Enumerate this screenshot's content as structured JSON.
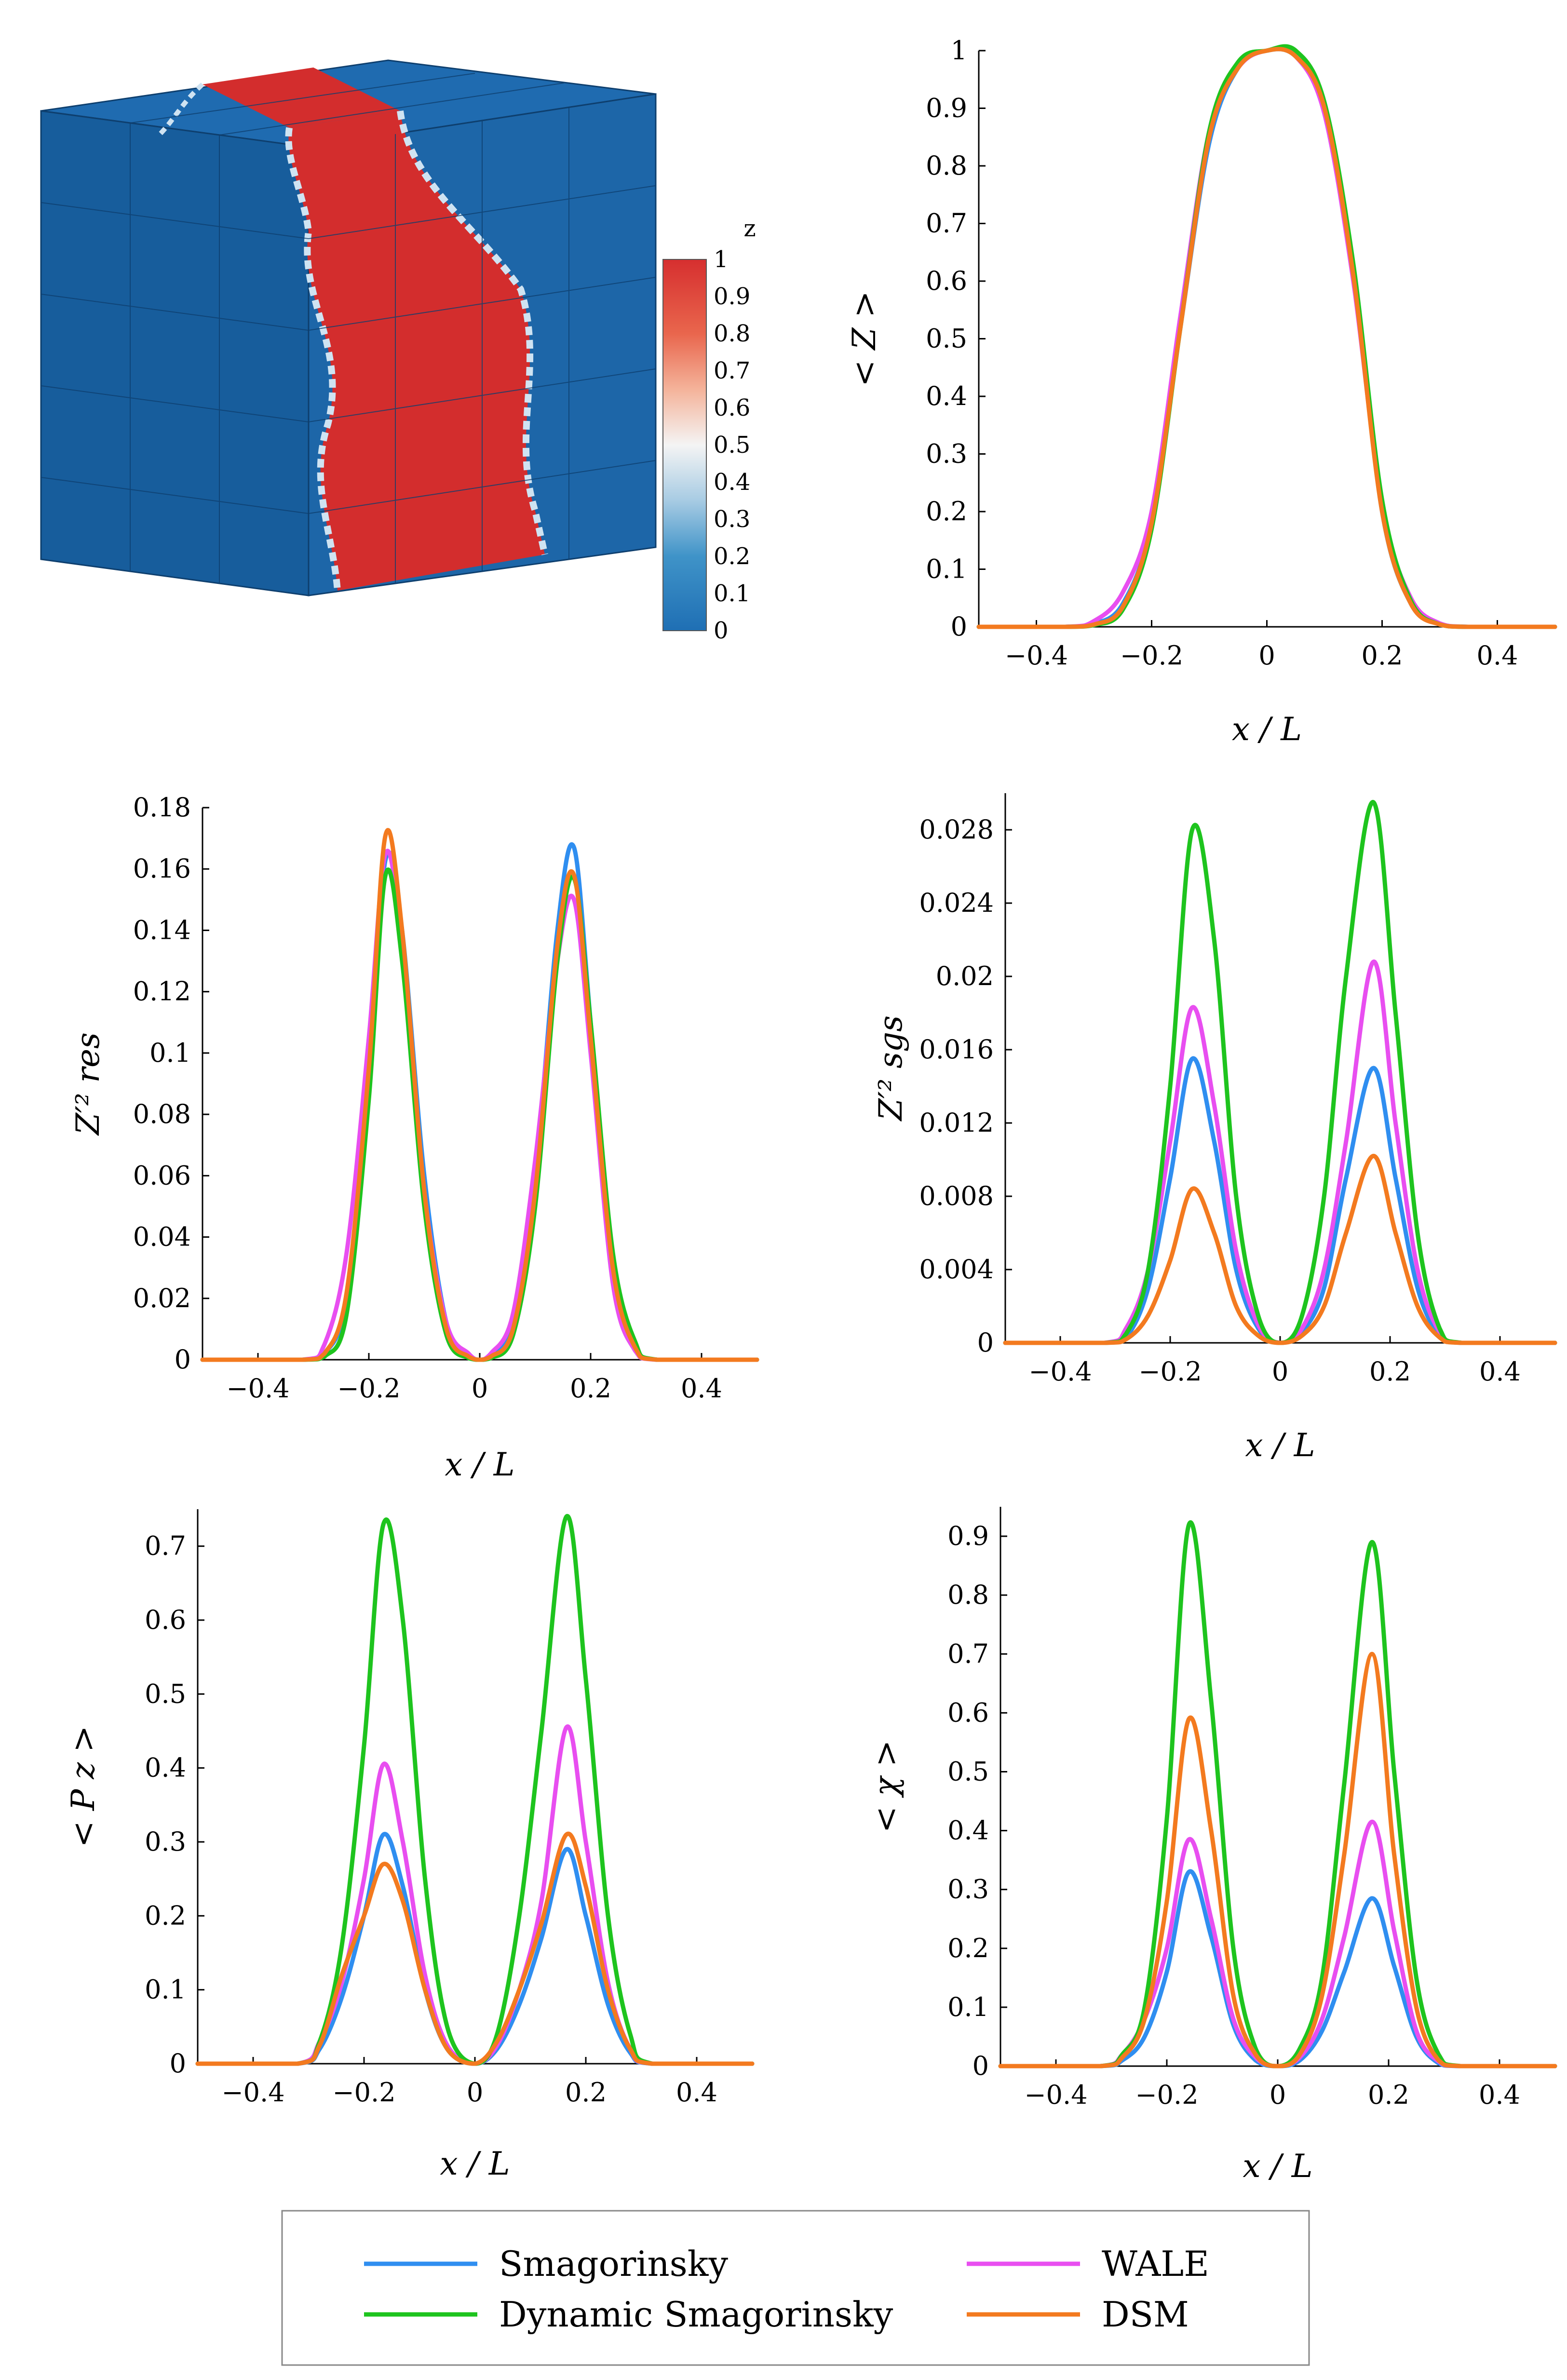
{
  "figure": {
    "cube_panel": {
      "colorbar": {
        "title": "z",
        "ticks": [
          "1",
          "0.9",
          "0.8",
          "0.7",
          "0.6",
          "0.5",
          "0.4",
          "0.3",
          "0.2",
          "0.1",
          "0"
        ],
        "color_low": "#1f6fb4",
        "color_mid": "#f4f4f4",
        "color_high": "#d62f2f"
      }
    },
    "legend": {
      "entries": [
        {
          "label": "Smagorinsky",
          "color": "#2f8ef0"
        },
        {
          "label": "WALE",
          "color": "#e84ef0"
        },
        {
          "label": "Dynamic Smagorinsky",
          "color": "#1ec41e"
        },
        {
          "label": "DSM",
          "color": "#f37a1f"
        }
      ]
    }
  },
  "chart_data": [
    {
      "id": "mean_z",
      "type": "line",
      "title": "",
      "xlabel": "x / L",
      "ylabel": "< Z >",
      "xlim": [
        -0.5,
        0.5
      ],
      "ylim": [
        0,
        1
      ],
      "xticks": [
        "−0.4",
        "−0.2",
        "0",
        "0.2",
        "0.4"
      ],
      "yticks": [
        "0",
        "0.1",
        "0.2",
        "0.3",
        "0.4",
        "0.5",
        "0.6",
        "0.7",
        "0.8",
        "0.9",
        "1"
      ],
      "x": [
        -0.5,
        -0.35,
        -0.3,
        -0.25,
        -0.2,
        -0.15,
        -0.1,
        -0.05,
        0,
        0.05,
        0.1,
        0.15,
        0.2,
        0.25,
        0.3,
        0.35,
        0.5
      ],
      "series": [
        {
          "name": "Smagorinsky",
          "values": [
            0,
            0,
            0.005,
            0.04,
            0.18,
            0.52,
            0.84,
            0.97,
            1.0,
            0.99,
            0.9,
            0.62,
            0.2,
            0.04,
            0.005,
            0,
            0
          ]
        },
        {
          "name": "WALE",
          "values": [
            0,
            0,
            0.01,
            0.06,
            0.2,
            0.54,
            0.86,
            0.97,
            1.0,
            0.99,
            0.89,
            0.6,
            0.21,
            0.05,
            0.006,
            0,
            0
          ]
        },
        {
          "name": "Dynamic Smagorinsky",
          "values": [
            0,
            0,
            0.003,
            0.03,
            0.17,
            0.52,
            0.86,
            0.98,
            1.0,
            1.0,
            0.91,
            0.63,
            0.22,
            0.045,
            0.004,
            0,
            0
          ]
        },
        {
          "name": "DSM",
          "values": [
            0,
            0,
            0.004,
            0.035,
            0.18,
            0.52,
            0.85,
            0.97,
            1.0,
            0.99,
            0.9,
            0.61,
            0.2,
            0.04,
            0.004,
            0,
            0
          ]
        }
      ]
    },
    {
      "id": "z_var_res",
      "type": "line",
      "title": "",
      "xlabel": "x / L",
      "ylabel": "Z′² res",
      "xlim": [
        -0.5,
        0.5
      ],
      "ylim": [
        0,
        0.18
      ],
      "xticks": [
        "−0.4",
        "−0.2",
        "0",
        "0.2",
        "0.4"
      ],
      "yticks": [
        "0",
        "0.02",
        "0.04",
        "0.06",
        "0.08",
        "0.1",
        "0.12",
        "0.14",
        "0.16",
        "0.18"
      ],
      "x": [
        -0.5,
        -0.32,
        -0.28,
        -0.24,
        -0.2,
        -0.17,
        -0.14,
        -0.1,
        -0.06,
        -0.02,
        0,
        0.02,
        0.06,
        0.1,
        0.14,
        0.17,
        0.2,
        0.24,
        0.28,
        0.32,
        0.5
      ],
      "series": [
        {
          "name": "Smagorinsky",
          "values": [
            0,
            0,
            0.002,
            0.02,
            0.09,
            0.163,
            0.14,
            0.06,
            0.012,
            0.001,
            0,
            0.001,
            0.012,
            0.06,
            0.14,
            0.167,
            0.11,
            0.03,
            0.004,
            0,
            0
          ]
        },
        {
          "name": "WALE",
          "values": [
            0,
            0,
            0.005,
            0.035,
            0.105,
            0.165,
            0.135,
            0.055,
            0.012,
            0.002,
            0,
            0.002,
            0.015,
            0.065,
            0.13,
            0.15,
            0.1,
            0.025,
            0.003,
            0,
            0
          ]
        },
        {
          "name": "Dynamic Smagorinsky",
          "values": [
            0,
            0,
            0.001,
            0.015,
            0.085,
            0.158,
            0.13,
            0.05,
            0.008,
            0.0005,
            0,
            0.0005,
            0.008,
            0.05,
            0.13,
            0.157,
            0.11,
            0.035,
            0.006,
            0,
            0
          ]
        },
        {
          "name": "DSM",
          "values": [
            0,
            0,
            0.002,
            0.022,
            0.095,
            0.171,
            0.14,
            0.055,
            0.01,
            0.001,
            0,
            0.001,
            0.01,
            0.055,
            0.135,
            0.158,
            0.105,
            0.03,
            0.004,
            0,
            0
          ]
        }
      ]
    },
    {
      "id": "z_var_sgs",
      "type": "line",
      "title": "",
      "xlabel": "x / L",
      "ylabel": "Z′² sgs",
      "xlim": [
        -0.5,
        0.5
      ],
      "ylim": [
        0,
        0.03
      ],
      "xticks": [
        "−0.4",
        "−0.2",
        "0",
        "0.2",
        "0.4"
      ],
      "yticks": [
        "0",
        "0.004",
        "0.008",
        "0.012",
        "0.016",
        "0.02",
        "0.024",
        "0.028"
      ],
      "x": [
        -0.5,
        -0.32,
        -0.28,
        -0.24,
        -0.2,
        -0.16,
        -0.12,
        -0.08,
        -0.04,
        0,
        0.04,
        0.08,
        0.12,
        0.17,
        0.21,
        0.25,
        0.29,
        0.33,
        0.5
      ],
      "series": [
        {
          "name": "Smagorinsky",
          "values": [
            0,
            0,
            0.0003,
            0.003,
            0.009,
            0.0155,
            0.011,
            0.004,
            0.0008,
            0,
            0.0006,
            0.003,
            0.009,
            0.015,
            0.009,
            0.003,
            0.0004,
            0,
            0
          ]
        },
        {
          "name": "WALE",
          "values": [
            0,
            0,
            0.0008,
            0.004,
            0.011,
            0.0183,
            0.013,
            0.005,
            0.001,
            0,
            0.0008,
            0.004,
            0.011,
            0.0208,
            0.012,
            0.004,
            0.0006,
            0,
            0
          ]
        },
        {
          "name": "Dynamic Smagorinsky",
          "values": [
            0,
            0,
            0.0005,
            0.004,
            0.014,
            0.028,
            0.022,
            0.008,
            0.0015,
            0,
            0.0015,
            0.008,
            0.02,
            0.0295,
            0.018,
            0.006,
            0.0008,
            0,
            0
          ]
        },
        {
          "name": "DSM",
          "values": [
            0,
            0,
            0.0002,
            0.0015,
            0.0045,
            0.0084,
            0.006,
            0.002,
            0.0004,
            0,
            0.0004,
            0.002,
            0.006,
            0.0102,
            0.006,
            0.002,
            0.0003,
            0,
            0
          ]
        }
      ]
    },
    {
      "id": "mean_pz",
      "type": "line",
      "title": "",
      "xlabel": "x / L",
      "ylabel": "< P z >",
      "xlim": [
        -0.5,
        0.5
      ],
      "ylim": [
        0,
        0.75
      ],
      "xticks": [
        "−0.4",
        "−0.2",
        "0",
        "0.2",
        "0.4"
      ],
      "yticks": [
        "0",
        "0.1",
        "0.2",
        "0.3",
        "0.4",
        "0.5",
        "0.6",
        "0.7"
      ],
      "x": [
        -0.5,
        -0.32,
        -0.28,
        -0.24,
        -0.2,
        -0.165,
        -0.13,
        -0.09,
        -0.05,
        0,
        0.04,
        0.08,
        0.12,
        0.165,
        0.2,
        0.24,
        0.28,
        0.32,
        0.5
      ],
      "series": [
        {
          "name": "Smagorinsky",
          "values": [
            0,
            0,
            0.02,
            0.09,
            0.2,
            0.31,
            0.24,
            0.1,
            0.02,
            0,
            0.02,
            0.08,
            0.17,
            0.29,
            0.2,
            0.08,
            0.015,
            0,
            0
          ]
        },
        {
          "name": "WALE",
          "values": [
            0,
            0,
            0.03,
            0.11,
            0.25,
            0.405,
            0.3,
            0.12,
            0.025,
            0,
            0.025,
            0.1,
            0.22,
            0.455,
            0.3,
            0.11,
            0.02,
            0,
            0
          ]
        },
        {
          "name": "Dynamic Smagorinsky",
          "values": [
            0,
            0,
            0.03,
            0.16,
            0.43,
            0.73,
            0.6,
            0.25,
            0.05,
            0,
            0.04,
            0.2,
            0.45,
            0.74,
            0.52,
            0.2,
            0.04,
            0,
            0
          ]
        },
        {
          "name": "DSM",
          "values": [
            0,
            0,
            0.025,
            0.12,
            0.2,
            0.27,
            0.22,
            0.1,
            0.02,
            0,
            0.03,
            0.1,
            0.19,
            0.31,
            0.24,
            0.1,
            0.02,
            0,
            0
          ]
        }
      ]
    },
    {
      "id": "mean_chi",
      "type": "line",
      "title": "",
      "xlabel": "x / L",
      "ylabel": "< χ >",
      "xlim": [
        -0.5,
        0.5
      ],
      "ylim": [
        0,
        0.95
      ],
      "xticks": [
        "−0.4",
        "−0.2",
        "0",
        "0.2",
        "0.4"
      ],
      "yticks": [
        "0",
        "0.1",
        "0.2",
        "0.3",
        "0.4",
        "0.5",
        "0.6",
        "0.7",
        "0.8",
        "0.9"
      ],
      "x": [
        -0.5,
        -0.32,
        -0.28,
        -0.24,
        -0.2,
        -0.16,
        -0.12,
        -0.08,
        -0.04,
        0,
        0.04,
        0.08,
        0.12,
        0.17,
        0.21,
        0.25,
        0.29,
        0.33,
        0.5
      ],
      "series": [
        {
          "name": "Smagorinsky",
          "values": [
            0,
            0,
            0.01,
            0.05,
            0.16,
            0.33,
            0.22,
            0.07,
            0.01,
            0,
            0.01,
            0.06,
            0.16,
            0.285,
            0.17,
            0.05,
            0.005,
            0,
            0
          ]
        },
        {
          "name": "WALE",
          "values": [
            0,
            0,
            0.02,
            0.08,
            0.2,
            0.385,
            0.25,
            0.08,
            0.015,
            0,
            0.015,
            0.08,
            0.22,
            0.415,
            0.23,
            0.06,
            0.008,
            0,
            0
          ]
        },
        {
          "name": "Dynamic Smagorinsky",
          "values": [
            0,
            0,
            0.02,
            0.1,
            0.42,
            0.92,
            0.62,
            0.2,
            0.03,
            0,
            0.03,
            0.15,
            0.48,
            0.89,
            0.5,
            0.15,
            0.02,
            0,
            0
          ]
        },
        {
          "name": "DSM",
          "values": [
            0,
            0,
            0.015,
            0.08,
            0.28,
            0.59,
            0.4,
            0.12,
            0.02,
            0,
            0.02,
            0.12,
            0.36,
            0.7,
            0.36,
            0.1,
            0.01,
            0,
            0
          ]
        }
      ]
    }
  ]
}
